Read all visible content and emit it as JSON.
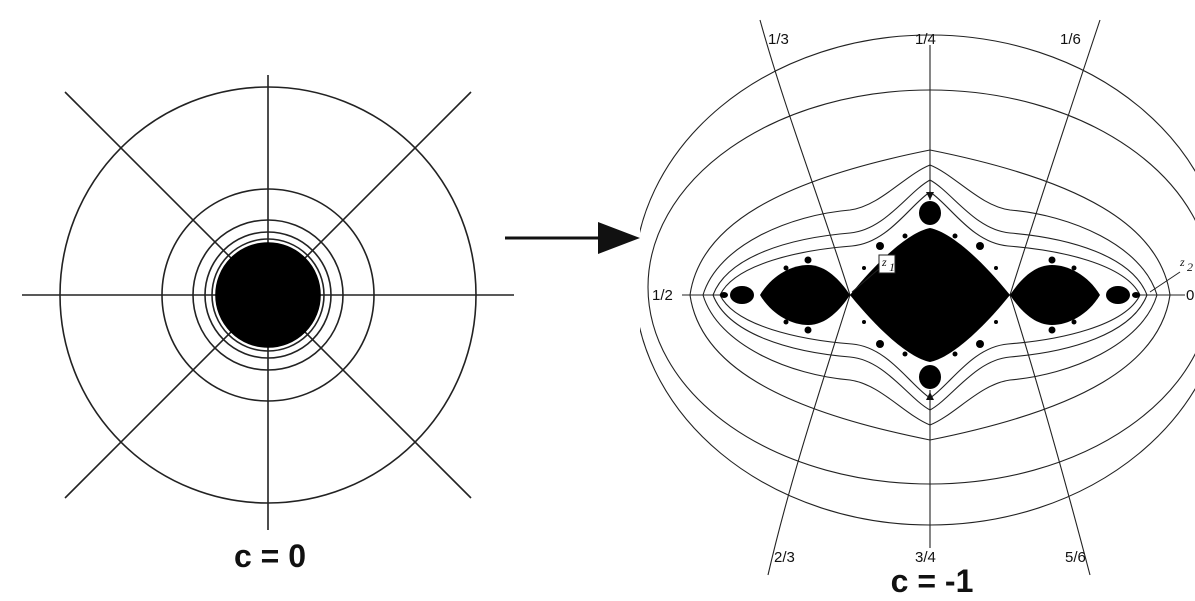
{
  "left_panel": {
    "caption": "c = 0"
  },
  "right_panel": {
    "caption": "c = -1",
    "ray_labels": {
      "top_left": "1/3",
      "top_center": "1/4",
      "top_right": "1/6",
      "left": "1/2",
      "right": "0",
      "bottom_left": "2/3",
      "bottom_center": "3/4",
      "bottom_right": "5/6"
    },
    "point_labels": {
      "z1": "z",
      "z1_sub": "1",
      "z2": "z",
      "z2_sub": "2"
    }
  },
  "colors": {
    "ink": "#111111",
    "background": "#ffffff"
  }
}
